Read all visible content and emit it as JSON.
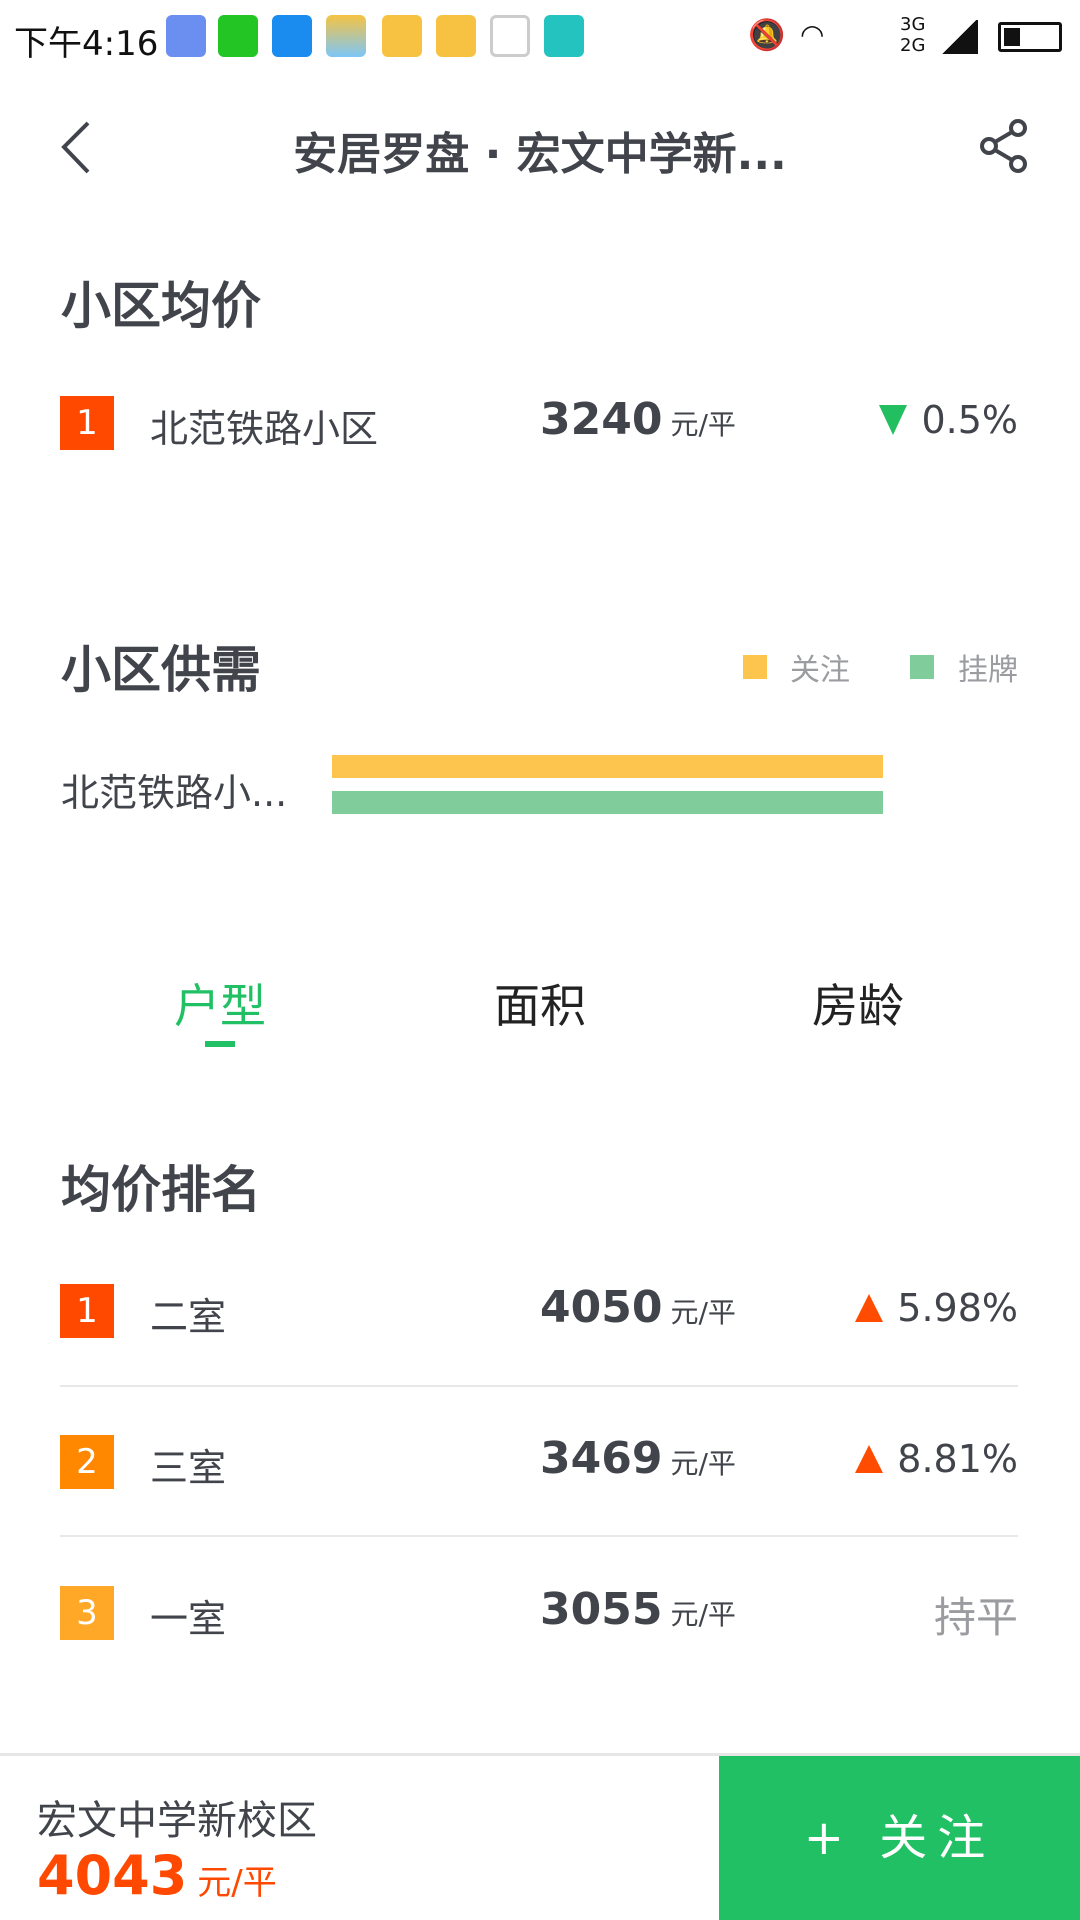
{
  "status_bar": {
    "time": "下午4:16",
    "network_top": "3G",
    "network_bottom": "2G"
  },
  "header": {
    "title": "安居罗盘 · 宏文中学新..."
  },
  "avg_price": {
    "heading": "小区均价",
    "rows": [
      {
        "rank": "1",
        "name": "北范铁路小区",
        "price": "3240",
        "unit": "元/平",
        "change": "0.5%",
        "trend": "down"
      }
    ]
  },
  "supply": {
    "heading": "小区供需",
    "legend": [
      {
        "label": "关注",
        "color": "#fec54e"
      },
      {
        "label": "挂牌",
        "color": "#80cc9a"
      }
    ],
    "bars": [
      {
        "label": "北范铁路小...",
        "attention": 1.0,
        "listing": 1.0
      }
    ]
  },
  "tabs": [
    {
      "label": "户型",
      "active": true
    },
    {
      "label": "面积",
      "active": false
    },
    {
      "label": "房龄",
      "active": false
    }
  ],
  "ranking": {
    "heading": "均价排名",
    "rows": [
      {
        "rank": "1",
        "name": "二室",
        "price": "4050",
        "unit": "元/平",
        "change": "5.98%",
        "trend": "up",
        "badge_color": "#ff4800"
      },
      {
        "rank": "2",
        "name": "三室",
        "price": "3469",
        "unit": "元/平",
        "change": "8.81%",
        "trend": "up",
        "badge_color": "#ff8800"
      },
      {
        "rank": "3",
        "name": "一室",
        "price": "3055",
        "unit": "元/平",
        "change": "持平",
        "trend": "flat",
        "badge_color": "#ffa726"
      }
    ]
  },
  "footer": {
    "name": "宏文中学新校区",
    "price": "4043",
    "unit": "元/平",
    "follow_label": "+ 关注"
  },
  "colors": {
    "accent": "#21c064",
    "price_red": "#ff4800",
    "up": "#ff4c00",
    "down": "#22bf60"
  }
}
